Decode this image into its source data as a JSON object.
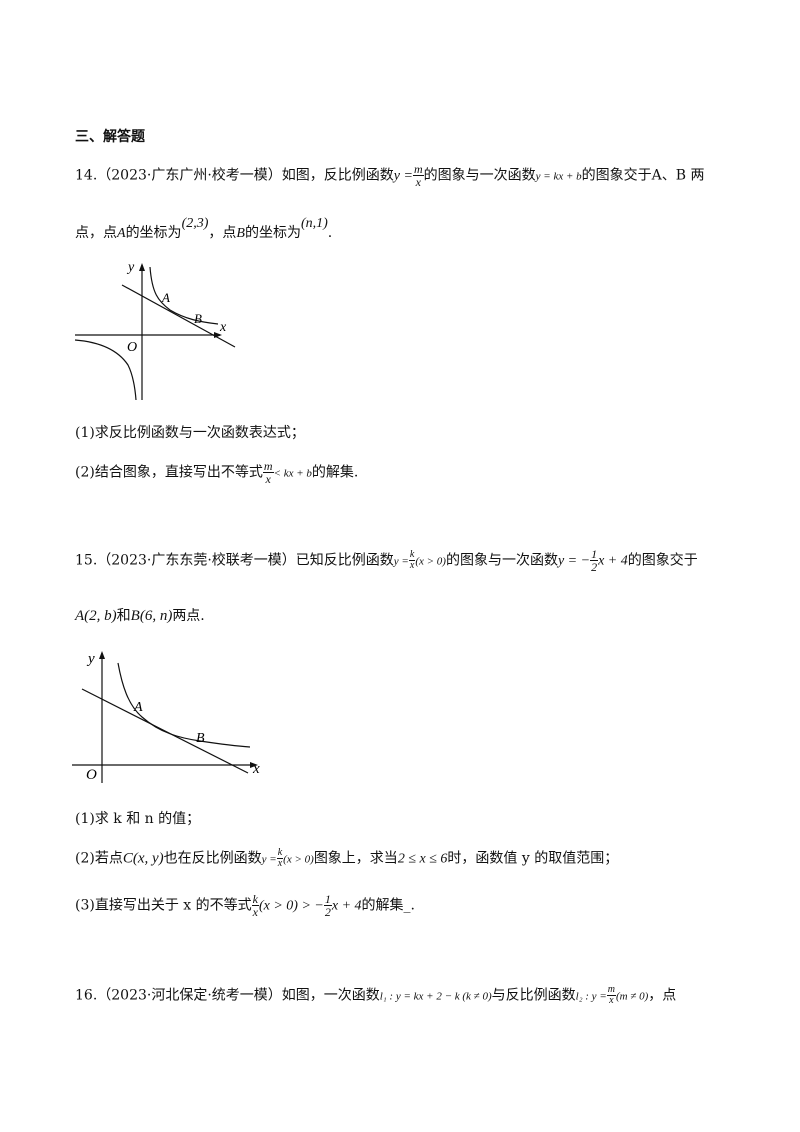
{
  "section_title": "三、解答题",
  "q14": {
    "number": "14.",
    "source": "（2023·广东广州·校考一模）",
    "line1_a": "如图，反比例函数",
    "func_inv": "y =",
    "frac_num": "m",
    "frac_den": "x",
    "line1_b": "的图象与一次函数",
    "func_lin": "y = kx + b",
    "line1_c": "的图象交于",
    "line1_d": "A、B 两",
    "line2_a": "点，点",
    "pt_a": "A",
    "line2_b": "的坐标为",
    "coord_a": "(2,3)",
    "line2_c": "，点",
    "pt_b": "B",
    "line2_d": "的坐标为",
    "coord_b": "(n,1)",
    "line2_e": ".",
    "sub1": "(1)求反比例函数与一次函数表达式；",
    "sub2_a": "(2)结合图象，直接写出不等式",
    "sub2_frac_num": "m",
    "sub2_frac_den": "x",
    "sub2_ineq": "< kx + b",
    "sub2_b": "的解集.",
    "graph_labels": {
      "y": "y",
      "x": "x",
      "o": "O",
      "a": "A",
      "b": "B"
    }
  },
  "q15": {
    "number": "15.",
    "source": "（2023·广东东莞·校联考一模）",
    "line1_a": "已知反比例函数",
    "func_inv_lhs": "y =",
    "frac_num": "k",
    "frac_den": "x",
    "func_inv_cond": "(x > 0)",
    "line1_b": "的图象与一次函数",
    "func_lin_lhs": "y = −",
    "lin_frac_num": "1",
    "lin_frac_den": "2",
    "func_lin_rhs": "x + 4",
    "line1_c": "的图象交于",
    "pt_a": "A(2, b)",
    "line2_and": "和",
    "pt_b": "B(6, n)",
    "line2_end": "两点.",
    "sub1": "(1)求 k 和 n 的值；",
    "sub2_a": "(2)若点",
    "sub2_pt": "C(x, y)",
    "sub2_b": "也在反比例函数",
    "sub2_func_lhs": "y =",
    "sub2_frac_num": "k",
    "sub2_frac_den": "x",
    "sub2_cond": "(x > 0)",
    "sub2_c": "图象上，求当",
    "sub2_range": "2 ≤ x ≤ 6",
    "sub2_d": "时，函数值 y 的取值范围；",
    "sub3_a": "(3)直接写出关于 x 的不等式",
    "sub3_frac_num": "k",
    "sub3_frac_den": "x",
    "sub3_cond": "(x > 0) > −",
    "sub3_lin_num": "1",
    "sub3_lin_den": "2",
    "sub3_rhs": "x + 4",
    "sub3_b": "的解集_.",
    "graph_labels": {
      "y": "y",
      "x": "x",
      "o": "O",
      "a": "A",
      "b": "B"
    }
  },
  "q16": {
    "number": "16.",
    "source": "（2023·河北保定·统考一模）",
    "line1_a": "如图，一次函数",
    "l1": "l₁ : y = kx + 2 − k (k ≠ 0)",
    "line1_b": "与反比例函数",
    "l2_lhs": "l₂ : y =",
    "l2_num": "m",
    "l2_den": "x",
    "l2_cond": "(m ≠ 0)",
    "line1_c": "，点"
  }
}
